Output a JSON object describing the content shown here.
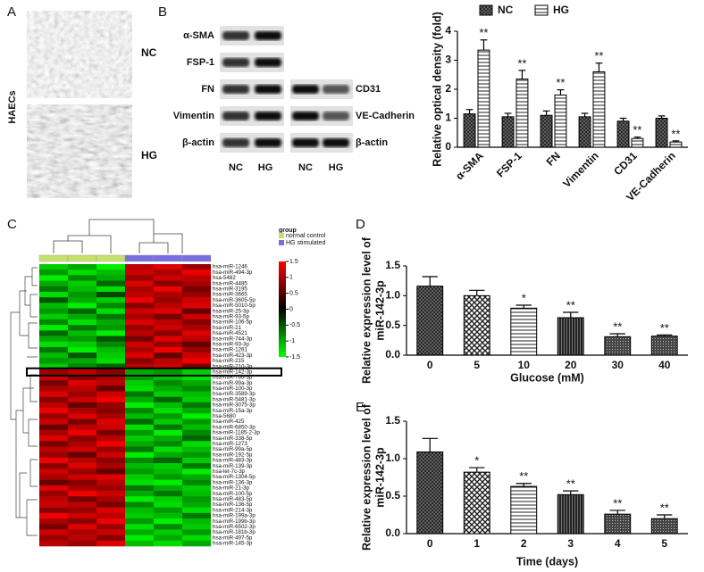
{
  "panel_labels": [
    "A",
    "B",
    "C",
    "D",
    "E"
  ],
  "panel_a": {
    "y_label": "HAECs",
    "conditions": [
      "NC",
      "HG"
    ]
  },
  "blots": {
    "left_rows": [
      "α-SMA",
      "FSP-1",
      "FN",
      "Vimentin",
      "β-actin"
    ],
    "right_rows": [
      "CD31",
      "VE-Cadherin",
      "β-actin"
    ],
    "lanes": [
      "NC",
      "HG",
      "NC",
      "HG"
    ]
  },
  "heatmap": {
    "legend_title": "group",
    "groups": [
      {
        "name": "normal control",
        "color": "#c6e06c"
      },
      {
        "name": "HG stimulated",
        "color": "#7a6ee0"
      }
    ],
    "column_groups": [
      0,
      0,
      0,
      1,
      1,
      1
    ],
    "clim": [
      -1.5,
      1.5
    ],
    "colorbar_ticks": [
      1.5,
      1,
      0.5,
      0,
      -0.5,
      -1,
      -1.5
    ],
    "highlight_row": "hsa-miR-142-3p",
    "rows": [
      "hsa-miR-1246",
      "hsa-miR-494-3p",
      "hsa-5482",
      "hsa-miR-4485",
      "hsa-miR-3195",
      "hsa-miR-3665",
      "hsa-miR-3605-5p",
      "hsa-miR-5010-5p",
      "hsa-miR-25-3p",
      "hsa-miR-93-5p",
      "hsa-miR-106-5p",
      "hsa-miR-21",
      "hsa-miR-4521",
      "hsa-miR-744-3p",
      "hsa-miR-93-3p",
      "hsa-miR-1261",
      "hsa-miR-423-3p",
      "hsa-miR-215",
      "hsa-miR-210-3p",
      "hsa-miR-142-3p",
      "hsa-miR-766-3p",
      "hsa-miR-99a-3p",
      "hsa-miR-100-3p",
      "hsa-miR-3589-3p",
      "hsa-miR-5481-3p",
      "hsa-miR-3075-3p",
      "hsa-miR-15a-3p",
      "hsa-5680",
      "hsa-miR-425",
      "hsa-miR-6850-3p",
      "hsa-miR-1185-2-3p",
      "hsa-miR-338-5p",
      "hsa-miR-1273",
      "hsa-miR-99a-5p",
      "hsa-miR-192-5p",
      "hsa-miR-483-3p",
      "hsa-miR-139-3p",
      "hsa-let-7c-3p",
      "hsa-miR-1304-5p",
      "hsa-miR-136-3p",
      "hsa-miR-21-3p",
      "hsa-miR-100-5p",
      "hsa-miR-483-5p",
      "hsa-miR-136-5p",
      "hsa-miR-214-3p",
      "hsa-miR-199a-3p",
      "hsa-miR-199b-3p",
      "hsa-miR-6502-3p",
      "hsa-miR-181b-3p",
      "hsa-miR-497-5p",
      "hsa-miR-145-3p"
    ],
    "values": [
      [
        -1.2,
        -1.0,
        -1.4,
        1.1,
        1.3,
        0.9
      ],
      [
        -0.9,
        -1.3,
        -1.1,
        1.2,
        1.0,
        1.4
      ],
      [
        -1.4,
        -0.8,
        -1.0,
        0.9,
        1.2,
        1.1
      ],
      [
        -1.0,
        -1.2,
        -0.6,
        1.3,
        0.8,
        1.0
      ],
      [
        -0.7,
        -1.1,
        -1.3,
        1.0,
        1.4,
        0.7
      ],
      [
        -1.3,
        -0.9,
        -0.4,
        1.1,
        1.0,
        0.9
      ],
      [
        -0.5,
        -1.0,
        -1.2,
        1.4,
        0.9,
        1.2
      ],
      [
        -1.1,
        -1.4,
        -0.8,
        0.8,
        1.1,
        1.3
      ],
      [
        -0.9,
        -0.6,
        -1.3,
        1.2,
        1.3,
        0.6
      ],
      [
        -1.2,
        -1.0,
        -0.7,
        1.0,
        0.7,
        1.2
      ],
      [
        -0.8,
        -1.3,
        -1.0,
        1.3,
        1.1,
        0.8
      ],
      [
        -1.4,
        -0.7,
        -0.9,
        0.9,
        1.2,
        1.0
      ],
      [
        -0.6,
        -1.1,
        -1.4,
        1.1,
        0.8,
        1.3
      ],
      [
        -1.0,
        -0.9,
        -0.5,
        0.7,
        1.3,
        1.1
      ],
      [
        -1.3,
        -1.2,
        -0.8,
        1.2,
        0.9,
        0.6
      ],
      [
        -0.7,
        -1.4,
        -1.1,
        1.0,
        1.4,
        0.9
      ],
      [
        -1.1,
        -0.5,
        -1.2,
        1.3,
        0.6,
        1.2
      ],
      [
        -0.9,
        -1.0,
        -1.3,
        0.8,
        1.1,
        1.4
      ],
      [
        -1.2,
        -0.8,
        -0.6,
        1.1,
        1.2,
        0.7
      ],
      [
        0.9,
        1.1,
        0.8,
        -1.0,
        -0.9,
        -1.2
      ],
      [
        1.2,
        0.8,
        1.0,
        -0.9,
        -1.1,
        -1.3
      ],
      [
        0.7,
        1.3,
        1.1,
        -1.2,
        -0.8,
        -1.0
      ],
      [
        1.0,
        1.1,
        0.6,
        -1.3,
        -1.0,
        -0.8
      ],
      [
        1.3,
        0.9,
        1.2,
        -0.7,
        -1.2,
        -1.1
      ],
      [
        0.8,
        1.2,
        1.4,
        -1.0,
        -0.6,
        -1.2
      ],
      [
        1.1,
        0.6,
        0.9,
        -1.4,
        -1.1,
        -0.7
      ],
      [
        1.4,
        1.0,
        0.8,
        -0.8,
        -1.3,
        -1.0
      ],
      [
        0.9,
        1.3,
        1.0,
        -1.1,
        -0.9,
        -1.4
      ],
      [
        1.2,
        0.7,
        1.3,
        -0.6,
        -1.2,
        -0.9
      ],
      [
        0.6,
        1.1,
        1.2,
        -1.3,
        -0.7,
        -1.1
      ],
      [
        1.0,
        1.4,
        0.7,
        -0.9,
        -1.4,
        -0.8
      ],
      [
        1.3,
        0.8,
        1.1,
        -1.2,
        -1.0,
        -0.6
      ],
      [
        0.7,
        1.0,
        1.4,
        -1.0,
        -0.8,
        -1.3
      ],
      [
        1.1,
        1.2,
        0.9,
        -0.7,
        -1.3,
        -1.1
      ],
      [
        0.9,
        0.6,
        1.2,
        -1.4,
        -1.0,
        -0.9
      ],
      [
        1.4,
        1.1,
        0.8,
        -0.8,
        -0.6,
        -1.2
      ],
      [
        0.8,
        1.3,
        1.0,
        -1.1,
        -1.2,
        -0.7
      ],
      [
        1.2,
        0.9,
        0.6,
        -0.9,
        -1.1,
        -1.4
      ],
      [
        1.0,
        1.2,
        1.3,
        -1.2,
        -0.9,
        -1.0
      ],
      [
        0.6,
        0.8,
        1.1,
        -1.3,
        -1.4,
        -0.8
      ],
      [
        1.3,
        1.0,
        0.9,
        -0.7,
        -1.0,
        -1.2
      ],
      [
        0.9,
        1.4,
        1.2,
        -1.0,
        -0.7,
        -1.1
      ],
      [
        1.1,
        0.7,
        1.0,
        -1.4,
        -1.2,
        -0.9
      ],
      [
        1.2,
        1.1,
        0.7,
        -0.8,
        -1.3,
        -1.0
      ],
      [
        0.8,
        0.9,
        1.3,
        -1.1,
        -0.9,
        -1.3
      ],
      [
        1.4,
        1.2,
        1.1,
        -1.2,
        -1.1,
        -0.7
      ],
      [
        1.0,
        0.8,
        1.4,
        -0.9,
        -1.4,
        -1.1
      ],
      [
        0.7,
        1.3,
        0.9,
        -1.3,
        -0.8,
        -1.2
      ],
      [
        1.2,
        1.0,
        1.2,
        -1.0,
        -1.2,
        -0.9
      ],
      [
        0.9,
        1.1,
        0.8,
        -1.4,
        -1.0,
        -1.3
      ],
      [
        1.1,
        0.9,
        1.3,
        -1.1,
        -1.3,
        -1.0
      ]
    ]
  },
  "chart_data": [
    {
      "type": "bar",
      "ylabel": [
        "Relative optical density (fold)"
      ],
      "categories": [
        "α-SMA",
        "FSP-1",
        "FN",
        "Vimentin",
        "CD31",
        "VE-Cadherin"
      ],
      "series": [
        {
          "name": "NC",
          "values": [
            1.15,
            1.05,
            1.1,
            1.05,
            0.9,
            1.0
          ],
          "errors": [
            0.15,
            0.12,
            0.15,
            0.12,
            0.1,
            0.08
          ],
          "annotations": [
            null,
            null,
            null,
            null,
            null,
            null
          ]
        },
        {
          "name": "HG",
          "values": [
            3.35,
            2.35,
            1.8,
            2.6,
            0.3,
            0.18
          ],
          "errors": [
            0.35,
            0.3,
            0.18,
            0.3,
            0.05,
            0.04
          ],
          "annotations": [
            "**",
            "**",
            "**",
            "**",
            "**",
            "**"
          ]
        }
      ],
      "ylim": [
        0,
        4
      ],
      "yticks": [
        0,
        1,
        2,
        3,
        4
      ]
    },
    {
      "type": "bar",
      "ylabel": [
        "Relative expression level of",
        "miR-142-3p"
      ],
      "xlabel": "Glucose (mM)",
      "categories": [
        "0",
        "5",
        "10",
        "20",
        "30",
        "40"
      ],
      "series": [
        {
          "values": [
            1.16,
            1.0,
            0.79,
            0.63,
            0.31,
            0.32
          ],
          "errors": [
            0.16,
            0.09,
            0.05,
            0.09,
            0.05,
            0.02
          ],
          "annotations": [
            null,
            null,
            "*",
            "**",
            "**",
            "**"
          ]
        }
      ],
      "ylim": [
        0,
        1.5
      ],
      "yticks": [
        {
          "value": 0,
          "label": "0.0"
        },
        {
          "value": 0.5,
          "label": "0.5"
        },
        {
          "value": 1,
          "label": "1.0"
        },
        {
          "value": 1.5,
          "label": "1.5"
        }
      ]
    },
    {
      "type": "bar",
      "ylabel": [
        "Relative expression level of",
        "miR-142-3p"
      ],
      "xlabel": "Time (days)",
      "categories": [
        "0",
        "1",
        "2",
        "3",
        "4",
        "5"
      ],
      "series": [
        {
          "values": [
            1.09,
            0.82,
            0.63,
            0.52,
            0.26,
            0.2
          ],
          "errors": [
            0.18,
            0.06,
            0.04,
            0.05,
            0.05,
            0.05
          ],
          "annotations": [
            null,
            "*",
            "**",
            "**",
            "**",
            "**"
          ]
        }
      ],
      "ylim": [
        0,
        1.5
      ],
      "yticks": [
        {
          "value": 0,
          "label": "0.0"
        },
        {
          "value": 0.5,
          "label": "0.5"
        },
        {
          "value": 1,
          "label": "1.0"
        },
        {
          "value": 1.5,
          "label": "1.5"
        }
      ]
    }
  ]
}
